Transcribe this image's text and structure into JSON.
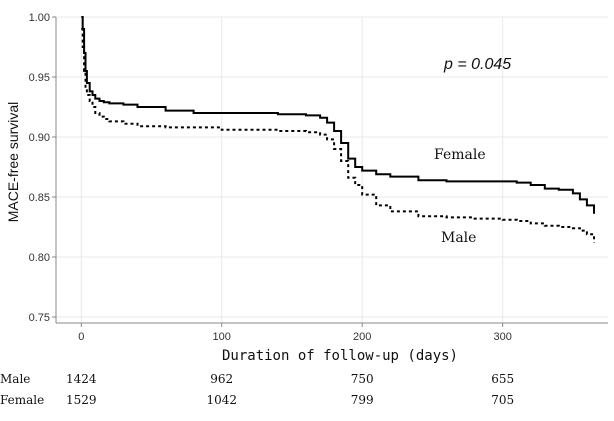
{
  "chart_data": {
    "type": "line",
    "title": "",
    "xlabel": "Duration of follow-up (days)",
    "ylabel": "MACE-free survival",
    "xlim": [
      -18,
      375
    ],
    "ylim": [
      0.745,
      1.0
    ],
    "xticks": [
      0,
      100,
      200,
      300
    ],
    "yticks": [
      0.75,
      0.8,
      0.85,
      0.9,
      0.95,
      1.0
    ],
    "ytick_labels": [
      "0.75",
      "0.80",
      "0.85",
      "0.90",
      "0.95",
      "1.00"
    ],
    "grid": true,
    "annotation": "p = 0.045",
    "series": [
      {
        "name": "Female",
        "style": "solid",
        "x": [
          0,
          1,
          2,
          3,
          4,
          6,
          8,
          10,
          13,
          16,
          20,
          30,
          40,
          60,
          80,
          100,
          120,
          140,
          160,
          170,
          175,
          180,
          185,
          190,
          195,
          200,
          210,
          220,
          240,
          260,
          280,
          300,
          310,
          320,
          330,
          340,
          350,
          355,
          360,
          365
        ],
        "y": [
          1.0,
          0.99,
          0.97,
          0.955,
          0.945,
          0.938,
          0.935,
          0.932,
          0.93,
          0.929,
          0.928,
          0.927,
          0.925,
          0.922,
          0.92,
          0.92,
          0.92,
          0.919,
          0.918,
          0.916,
          0.912,
          0.905,
          0.895,
          0.882,
          0.875,
          0.872,
          0.869,
          0.867,
          0.864,
          0.863,
          0.863,
          0.863,
          0.862,
          0.86,
          0.857,
          0.856,
          0.853,
          0.848,
          0.843,
          0.836
        ]
      },
      {
        "name": "Male",
        "style": "dotted",
        "x": [
          0,
          1,
          2,
          3,
          4,
          6,
          8,
          10,
          13,
          16,
          20,
          30,
          40,
          60,
          80,
          100,
          120,
          140,
          160,
          170,
          175,
          180,
          185,
          190,
          195,
          200,
          210,
          220,
          240,
          260,
          280,
          300,
          310,
          320,
          330,
          340,
          350,
          355,
          360,
          365
        ],
        "y": [
          0.99,
          0.975,
          0.955,
          0.94,
          0.935,
          0.93,
          0.925,
          0.92,
          0.917,
          0.915,
          0.913,
          0.911,
          0.909,
          0.908,
          0.908,
          0.906,
          0.906,
          0.905,
          0.904,
          0.902,
          0.898,
          0.89,
          0.88,
          0.866,
          0.86,
          0.852,
          0.843,
          0.838,
          0.834,
          0.833,
          0.832,
          0.831,
          0.83,
          0.828,
          0.826,
          0.825,
          0.824,
          0.822,
          0.819,
          0.812
        ]
      }
    ]
  },
  "risk_table": [
    {
      "group": "Male",
      "counts": [
        "1424",
        "962",
        "750",
        "655"
      ]
    },
    {
      "group": "Female",
      "counts": [
        "1529",
        "1042",
        "799",
        "705"
      ]
    }
  ],
  "colors": {
    "line": "#000000",
    "grid": "#e8e8e8",
    "axis": "#888888"
  }
}
